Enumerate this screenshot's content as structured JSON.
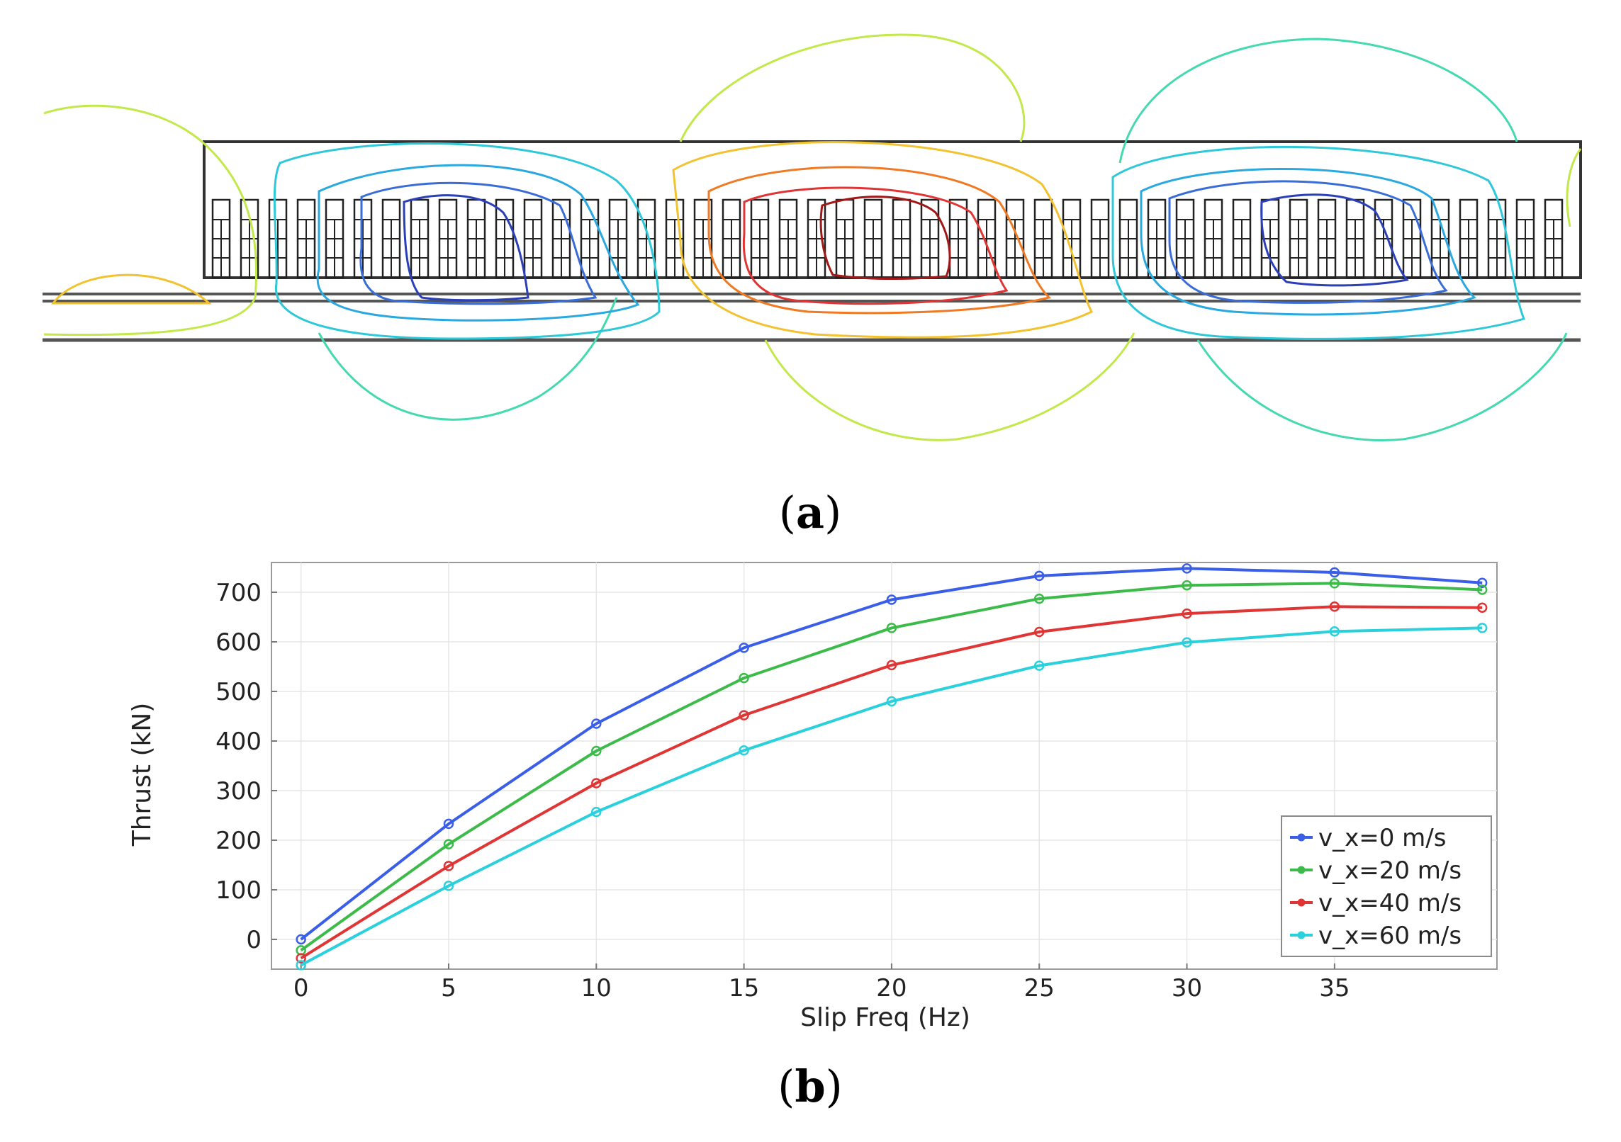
{
  "panel_a": {
    "caption_open": "(",
    "caption_letter": "a",
    "caption_close": ")"
  },
  "panel_b": {
    "caption_open": "(",
    "caption_letter": "b",
    "caption_close": ")"
  },
  "chart_data": {
    "type": "line",
    "title": "",
    "xlabel": "Slip Freq (Hz)",
    "ylabel": "Thrust (kN)",
    "xlim": [
      -1,
      40.5
    ],
    "ylim": [
      -60,
      760
    ],
    "xticks": [
      0,
      5,
      10,
      15,
      20,
      25,
      30,
      35
    ],
    "yticks": [
      0,
      100,
      200,
      300,
      400,
      500,
      600,
      700
    ],
    "grid": true,
    "legend_position": "bottom-right",
    "x": [
      0,
      5,
      10,
      15,
      20,
      25,
      30,
      35,
      40
    ],
    "series": [
      {
        "name": "v_x=0 m/s",
        "color": "#3a5ee8",
        "values": [
          0,
          233,
          435,
          588,
          685,
          733,
          748,
          740,
          719
        ]
      },
      {
        "name": "v_x=20 m/s",
        "color": "#3dbb4a",
        "values": [
          -22,
          192,
          380,
          527,
          628,
          687,
          714,
          718,
          705
        ]
      },
      {
        "name": "v_x=40 m/s",
        "color": "#e03535",
        "values": [
          -38,
          148,
          315,
          452,
          553,
          620,
          657,
          671,
          669
        ]
      },
      {
        "name": "v_x=60 m/s",
        "color": "#2ad0dc",
        "values": [
          -52,
          108,
          257,
          381,
          480,
          552,
          599,
          621,
          628
        ]
      }
    ]
  }
}
